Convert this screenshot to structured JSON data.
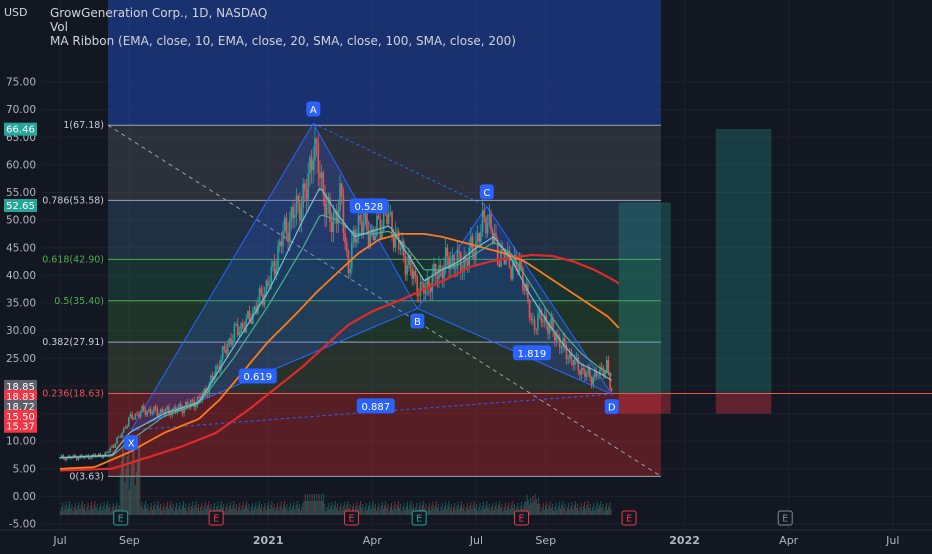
{
  "header": {
    "symbol_line": "GrowGeneration Corp., 1D, NASDAQ",
    "vol_label": "Vol",
    "ribbon_label": "MA Ribbon (EMA, close, 10, EMA, close, 20, SMA, close, 100, SMA, close, 200)",
    "currency": "USD"
  },
  "colors": {
    "background": "#131722",
    "up_candle": "#26a69a",
    "down_candle": "#ef5350",
    "ema10": "#70c5ce",
    "ema20": "#4caf8f",
    "sma100": "#ff7a1a",
    "sma200": "#e02929",
    "harmonic": "#2962ff",
    "price_tag_green": "#26a69a",
    "price_tag_red": "#f23645",
    "fib_label_red": "#ef5350"
  },
  "chart_data": {
    "type": "candlestick",
    "y_axis": {
      "range": [
        -5,
        86
      ],
      "ticks": [
        "-5.00",
        "0.00",
        "5.00",
        "10.00",
        "15.00",
        "20.00",
        "25.00",
        "30.00",
        "35.00",
        "40.00",
        "45.00",
        "50.00",
        "55.00",
        "60.00",
        "65.00",
        "70.00",
        "75.00"
      ]
    },
    "x_axis": {
      "labels": [
        {
          "label": "Jul",
          "t": 0.0
        },
        {
          "label": "Sep",
          "t": 2.0
        },
        {
          "label": "2021",
          "t": 6.0
        },
        {
          "label": "Apr",
          "t": 9.0
        },
        {
          "label": "Jul",
          "t": 12.0
        },
        {
          "label": "Sep",
          "t": 14.0
        },
        {
          "label": "2022",
          "t": 18.0
        },
        {
          "label": "Apr",
          "t": 21.0
        },
        {
          "label": "Jul",
          "t": 24.0
        }
      ]
    },
    "fib_levels": [
      {
        "ratio": 1,
        "price": 67.18,
        "label": "1(67.18)"
      },
      {
        "ratio": 0.786,
        "price": 53.58,
        "label": "0.786(53.58)"
      },
      {
        "ratio": 0.618,
        "price": 42.9,
        "label": "0.618(42.90)"
      },
      {
        "ratio": 0.5,
        "price": 35.4,
        "label": "0.5(35.40)"
      },
      {
        "ratio": 0.382,
        "price": 27.91,
        "label": "0.382(27.91)"
      },
      {
        "ratio": 0.236,
        "price": 18.63,
        "label": "0.236(18.63)"
      },
      {
        "ratio": 0,
        "price": 3.63,
        "label": "0(3.63)"
      }
    ],
    "harmonic_points": [
      {
        "name": "X",
        "t": 2.05,
        "price": 12.0
      },
      {
        "name": "A",
        "t": 7.3,
        "price": 67.5
      },
      {
        "name": "B",
        "t": 10.3,
        "price": 34.0
      },
      {
        "name": "C",
        "t": 12.3,
        "price": 52.5
      },
      {
        "name": "D",
        "t": 15.9,
        "price": 18.5
      }
    ],
    "harmonic_ratios": [
      {
        "label": "0.528",
        "t": 8.9,
        "price": 52.5
      },
      {
        "label": "0.619",
        "t": 5.7,
        "price": 21.7
      },
      {
        "label": "1.819",
        "t": 13.6,
        "price": 25.9
      },
      {
        "label": "0.887",
        "t": 9.1,
        "price": 16.3
      }
    ],
    "price_tags": [
      {
        "label": "66.46",
        "price": 66.46,
        "color": "#26a69a"
      },
      {
        "label": "52.65",
        "price": 52.65,
        "color": "#26a69a"
      },
      {
        "label": "18.85",
        "price": 19.9,
        "color": "#5d606b"
      },
      {
        "label": "18.83",
        "price": 18.1,
        "color": "#f23645"
      },
      {
        "label": "18.72",
        "price": 16.3,
        "color": "#5d606b"
      },
      {
        "label": "15.50",
        "price": 14.5,
        "color": "#f23645"
      },
      {
        "label": "15.37",
        "price": 12.7,
        "color": "#f23645"
      }
    ],
    "projection_boxes": [
      {
        "t0": 16.1,
        "t1": 17.6,
        "top": 53.2,
        "bottom": 18.6,
        "stop": 15.0
      },
      {
        "t0": 18.9,
        "t1": 20.5,
        "top": 66.5,
        "bottom": 18.6,
        "stop": 15.0
      }
    ],
    "earnings_markers": [
      {
        "label": "E",
        "t": 1.75,
        "kind": "green"
      },
      {
        "label": "E",
        "t": 4.5,
        "kind": "red"
      },
      {
        "label": "E",
        "t": 8.4,
        "kind": "red"
      },
      {
        "label": "E",
        "t": 10.35,
        "kind": "green"
      },
      {
        "label": "E",
        "t": 13.3,
        "kind": "red"
      },
      {
        "label": "E",
        "t": 16.4,
        "kind": "red"
      },
      {
        "label": "E",
        "t": 20.9,
        "kind": "gray"
      }
    ],
    "close_series_keypoints": [
      [
        0.0,
        7.0
      ],
      [
        0.8,
        7.2
      ],
      [
        1.3,
        7.5
      ],
      [
        1.7,
        10.5
      ],
      [
        2.0,
        14.0
      ],
      [
        2.4,
        15.5
      ],
      [
        3.0,
        15.3
      ],
      [
        3.5,
        16.0
      ],
      [
        4.0,
        17.5
      ],
      [
        4.3,
        20.0
      ],
      [
        4.6,
        24.5
      ],
      [
        5.0,
        29.5
      ],
      [
        5.4,
        31.5
      ],
      [
        5.8,
        36.0
      ],
      [
        6.1,
        40.0
      ],
      [
        6.4,
        47.0
      ],
      [
        6.8,
        52.0
      ],
      [
        7.1,
        55.0
      ],
      [
        7.3,
        64.0
      ],
      [
        7.5,
        58.0
      ],
      [
        7.8,
        49.0
      ],
      [
        8.1,
        54.0
      ],
      [
        8.3,
        41.0
      ],
      [
        8.6,
        50.0
      ],
      [
        9.0,
        47.0
      ],
      [
        9.4,
        51.0
      ],
      [
        9.8,
        45.0
      ],
      [
        10.1,
        41.0
      ],
      [
        10.4,
        37.0
      ],
      [
        10.8,
        40.0
      ],
      [
        11.2,
        43.0
      ],
      [
        11.6,
        42.0
      ],
      [
        12.0,
        46.0
      ],
      [
        12.3,
        51.0
      ],
      [
        12.6,
        44.0
      ],
      [
        13.0,
        42.0
      ],
      [
        13.3,
        41.0
      ],
      [
        13.6,
        31.0
      ],
      [
        13.9,
        32.5
      ],
      [
        14.2,
        30.0
      ],
      [
        14.6,
        26.0
      ],
      [
        15.0,
        23.0
      ],
      [
        15.3,
        21.5
      ],
      [
        15.6,
        22.5
      ],
      [
        15.75,
        24.0
      ],
      [
        15.85,
        20.0
      ],
      [
        15.9,
        18.8
      ]
    ],
    "ema10_keypoints": [
      [
        0.0,
        7.0
      ],
      [
        1.5,
        7.5
      ],
      [
        2.0,
        11.5
      ],
      [
        3.0,
        15.0
      ],
      [
        4.0,
        17.0
      ],
      [
        5.0,
        27.0
      ],
      [
        6.0,
        37.0
      ],
      [
        7.0,
        50.0
      ],
      [
        7.5,
        56.0
      ],
      [
        8.0,
        51.0
      ],
      [
        8.5,
        47.0
      ],
      [
        9.0,
        48.0
      ],
      [
        9.5,
        49.0
      ],
      [
        10.0,
        44.0
      ],
      [
        10.5,
        39.0
      ],
      [
        11.0,
        41.0
      ],
      [
        11.5,
        42.5
      ],
      [
        12.0,
        45.0
      ],
      [
        12.5,
        47.0
      ],
      [
        13.0,
        43.0
      ],
      [
        13.5,
        37.0
      ],
      [
        14.0,
        32.0
      ],
      [
        14.5,
        27.5
      ],
      [
        15.0,
        24.0
      ],
      [
        15.5,
        22.5
      ],
      [
        15.9,
        21.0
      ]
    ],
    "ema20_keypoints": [
      [
        0.0,
        7.0
      ],
      [
        1.5,
        7.3
      ],
      [
        2.0,
        10.0
      ],
      [
        3.0,
        14.5
      ],
      [
        4.0,
        16.8
      ],
      [
        5.0,
        25.0
      ],
      [
        6.0,
        34.5
      ],
      [
        7.0,
        45.0
      ],
      [
        7.5,
        51.0
      ],
      [
        8.0,
        50.0
      ],
      [
        8.5,
        47.5
      ],
      [
        9.0,
        47.5
      ],
      [
        9.5,
        48.0
      ],
      [
        10.0,
        45.0
      ],
      [
        10.5,
        41.0
      ],
      [
        11.0,
        41.0
      ],
      [
        11.5,
        42.0
      ],
      [
        12.0,
        44.0
      ],
      [
        12.5,
        46.0
      ],
      [
        13.0,
        44.0
      ],
      [
        13.5,
        39.0
      ],
      [
        14.0,
        34.0
      ],
      [
        14.5,
        29.5
      ],
      [
        15.0,
        26.0
      ],
      [
        15.5,
        23.5
      ],
      [
        15.9,
        22.0
      ]
    ],
    "sma100_keypoints": [
      [
        0.0,
        5.0
      ],
      [
        1.0,
        5.3
      ],
      [
        2.0,
        8.0
      ],
      [
        3.0,
        11.5
      ],
      [
        4.0,
        14.0
      ],
      [
        4.6,
        17.5
      ],
      [
        5.2,
        22.0
      ],
      [
        6.0,
        28.0
      ],
      [
        6.8,
        33.0
      ],
      [
        7.4,
        37.0
      ],
      [
        8.0,
        40.5
      ],
      [
        8.6,
        44.0
      ],
      [
        9.2,
        46.5
      ],
      [
        9.8,
        47.5
      ],
      [
        10.5,
        47.5
      ],
      [
        11.0,
        47.0
      ],
      [
        11.6,
        46.0
      ],
      [
        12.2,
        45.0
      ],
      [
        12.8,
        44.0
      ],
      [
        13.4,
        42.5
      ],
      [
        14.0,
        40.0
      ],
      [
        14.6,
        37.5
      ],
      [
        15.2,
        35.0
      ],
      [
        15.8,
        32.5
      ],
      [
        16.1,
        30.5
      ]
    ],
    "sma200_keypoints": [
      [
        0.0,
        4.7
      ],
      [
        1.5,
        5.0
      ],
      [
        2.5,
        7.0
      ],
      [
        3.5,
        9.0
      ],
      [
        4.5,
        11.5
      ],
      [
        5.5,
        16.0
      ],
      [
        6.3,
        20.0
      ],
      [
        7.0,
        23.5
      ],
      [
        7.6,
        27.0
      ],
      [
        8.3,
        31.0
      ],
      [
        9.0,
        33.5
      ],
      [
        9.8,
        35.5
      ],
      [
        10.5,
        37.5
      ],
      [
        11.2,
        39.5
      ],
      [
        11.8,
        41.5
      ],
      [
        12.4,
        42.5
      ],
      [
        13.0,
        43.2
      ],
      [
        13.6,
        43.7
      ],
      [
        14.2,
        43.5
      ],
      [
        14.8,
        42.5
      ],
      [
        15.4,
        41.0
      ],
      [
        16.0,
        39.0
      ],
      [
        16.1,
        38.5
      ]
    ]
  }
}
